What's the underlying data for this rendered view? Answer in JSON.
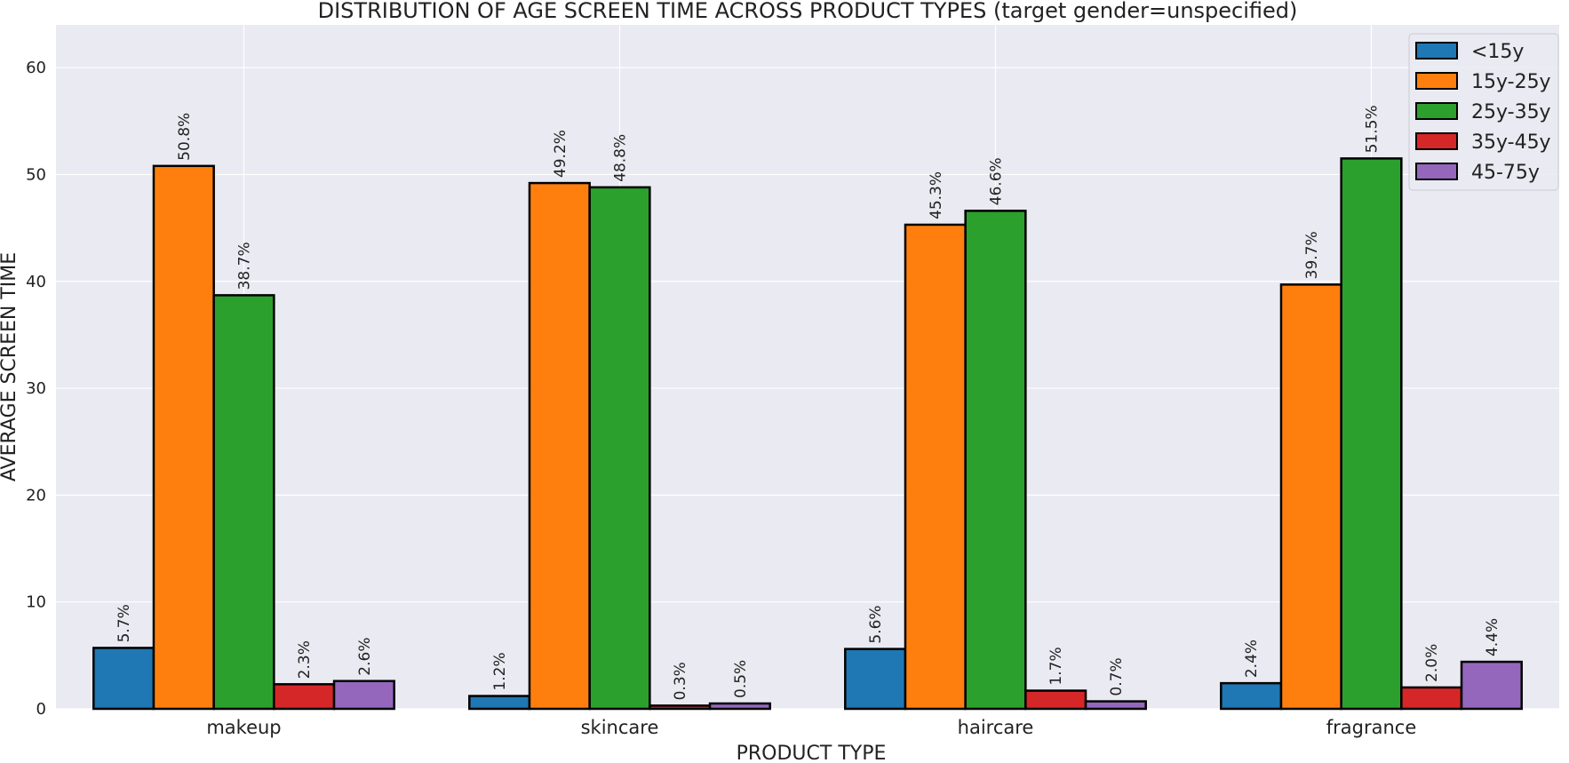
{
  "chart_data": {
    "type": "bar",
    "title": "DISTRIBUTION OF AGE SCREEN TIME ACROSS PRODUCT TYPES (target gender=unspecified)",
    "xlabel": "PRODUCT TYPE",
    "ylabel": "AVERAGE SCREEN TIME",
    "categories": [
      "makeup",
      "skincare",
      "haircare",
      "fragrance"
    ],
    "series": [
      {
        "name": "<15y",
        "color": "#1f77b4",
        "values": [
          5.7,
          1.2,
          5.6,
          2.4
        ],
        "labels": [
          "5.7%",
          "1.2%",
          "5.6%",
          "2.4%"
        ]
      },
      {
        "name": "15y-25y",
        "color": "#ff7f0e",
        "values": [
          50.8,
          49.2,
          45.3,
          39.7
        ],
        "labels": [
          "50.8%",
          "49.2%",
          "45.3%",
          "39.7%"
        ]
      },
      {
        "name": "25y-35y",
        "color": "#2ca02c",
        "values": [
          38.7,
          48.8,
          46.6,
          51.5
        ],
        "labels": [
          "38.7%",
          "48.8%",
          "46.6%",
          "51.5%"
        ]
      },
      {
        "name": "35y-45y",
        "color": "#d62728",
        "values": [
          2.3,
          0.3,
          1.7,
          2.0
        ],
        "labels": [
          "2.3%",
          "0.3%",
          "1.7%",
          "2.0%"
        ]
      },
      {
        "name": "45-75y",
        "color": "#9467bd",
        "values": [
          2.6,
          0.5,
          0.7,
          4.4
        ],
        "labels": [
          "2.6%",
          "0.5%",
          "0.7%",
          "4.4%"
        ]
      }
    ],
    "yticks": [
      0,
      10,
      20,
      30,
      40,
      50,
      60
    ],
    "ylim": [
      0,
      64
    ],
    "grid": true,
    "legend_position": "top-right",
    "background_color": "#eaeaf2",
    "grid_color": "#ffffff"
  }
}
